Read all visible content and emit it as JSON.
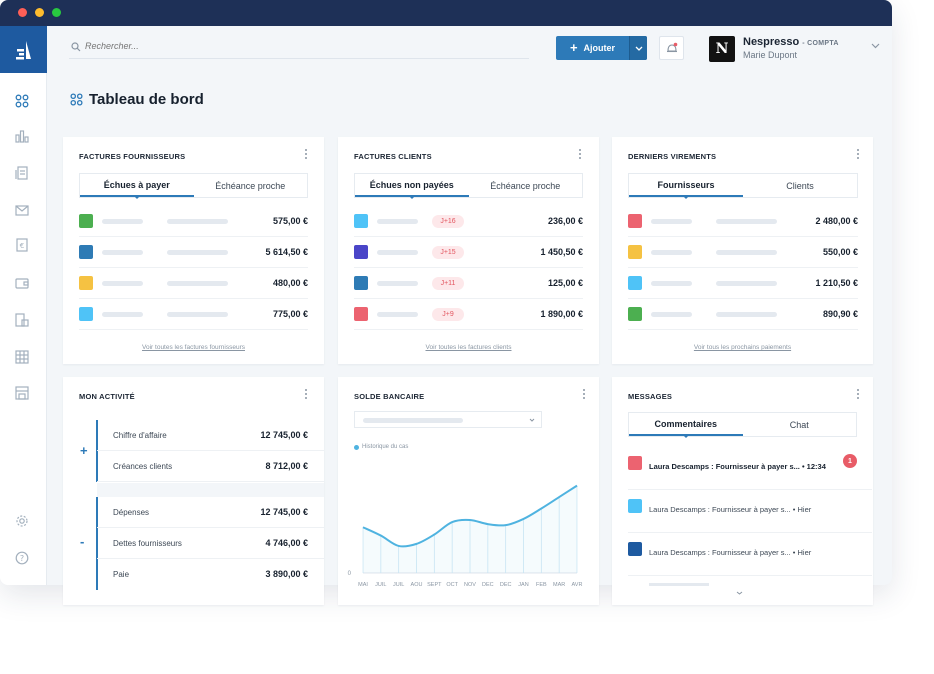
{
  "search": {
    "placeholder": "Rechercher..."
  },
  "toolbar": {
    "add_label": "Ajouter"
  },
  "account": {
    "company": "Nespresso",
    "role": "- COMPTA",
    "user": "Marie Dupont",
    "logo_letter": "N"
  },
  "page": {
    "title": "Tableau de bord"
  },
  "supplier_invoices": {
    "title": "FACTURES FOURNISSEURS",
    "tabs": [
      "Échues à payer",
      "Échéance proche"
    ],
    "rows": [
      {
        "color": "#4caf50",
        "amount": "575,00 €"
      },
      {
        "color": "#2e7bb5",
        "amount": "5 614,50 €"
      },
      {
        "color": "#f5c242",
        "amount": "480,00 €"
      },
      {
        "color": "#4fc3f7",
        "amount": "775,00 €"
      }
    ],
    "link": "Voir toutes les factures fournisseurs"
  },
  "client_invoices": {
    "title": "FACTURES CLIENTS",
    "tabs": [
      "Échues non payées",
      "Échéance proche"
    ],
    "rows": [
      {
        "color": "#4fc3f7",
        "badge": "J+16",
        "amount": "236,00 €"
      },
      {
        "color": "#4a45c8",
        "badge": "J+15",
        "amount": "1 450,50 €"
      },
      {
        "color": "#2e7bb5",
        "badge": "J+11",
        "amount": "125,00 €"
      },
      {
        "color": "#ec6370",
        "badge": "J+9",
        "amount": "1 890,00 €"
      }
    ],
    "link": "Voir toutes les factures clients"
  },
  "transfers": {
    "title": "DERNIERS VIREMENTS",
    "tabs": [
      "Fournisseurs",
      "Clients"
    ],
    "rows": [
      {
        "color": "#ec6370",
        "amount": "2 480,00 €"
      },
      {
        "color": "#f5c242",
        "amount": "550,00 €"
      },
      {
        "color": "#4fc3f7",
        "amount": "1 210,50 €"
      },
      {
        "color": "#4caf50",
        "amount": "890,90 €"
      }
    ],
    "link": "Voir tous les prochains paiements"
  },
  "activity": {
    "title": "MON ACTIVITÉ",
    "plus_sign": "+",
    "minus_sign": "-",
    "income": [
      {
        "label": "Chiffre d'affaire",
        "value": "12 745,00 €"
      },
      {
        "label": "Créances clients",
        "value": "8 712,00 €"
      }
    ],
    "expenses": [
      {
        "label": "Dépenses",
        "value": "12 745,00 €"
      },
      {
        "label": "Dettes fournisseurs",
        "value": "4 746,00 €"
      },
      {
        "label": "Paie",
        "value": "3 890,00 €"
      }
    ]
  },
  "bank": {
    "title": "SOLDE BANCAIRE",
    "legend": "Historique du cas",
    "y_zero": "0",
    "accent": "#4fb3e0"
  },
  "chart_data": {
    "type": "line",
    "title": "SOLDE BANCAIRE",
    "categories": [
      "MAI",
      "JUIL",
      "JUIL",
      "AOU",
      "SEPT",
      "OCT",
      "NOV",
      "DEC",
      "DEC",
      "JAN",
      "FEB",
      "MAR",
      "AVR"
    ],
    "series": [
      {
        "name": "Historique du cas",
        "values": [
          44,
          36,
          26,
          28,
          37,
          49,
          51,
          47,
          46,
          52,
          62,
          73,
          84
        ]
      }
    ],
    "ylim": [
      0,
      100
    ],
    "grid": "vertical"
  },
  "messages": {
    "title": "MESSAGES",
    "tabs": [
      "Commentaires",
      "Chat"
    ],
    "unread": "1",
    "items": [
      {
        "color": "#ec6370",
        "text": "Laura Descamps : Fournisseur à payer s... • 12:34",
        "bold": true
      },
      {
        "color": "#4fc3f7",
        "text": "Laura Descamps : Fournisseur à payer s... • Hier",
        "bold": false
      },
      {
        "color": "#1e5aa0",
        "text": "Laura Descamps : Fournisseur à payer s... • Hier",
        "bold": false
      }
    ]
  }
}
